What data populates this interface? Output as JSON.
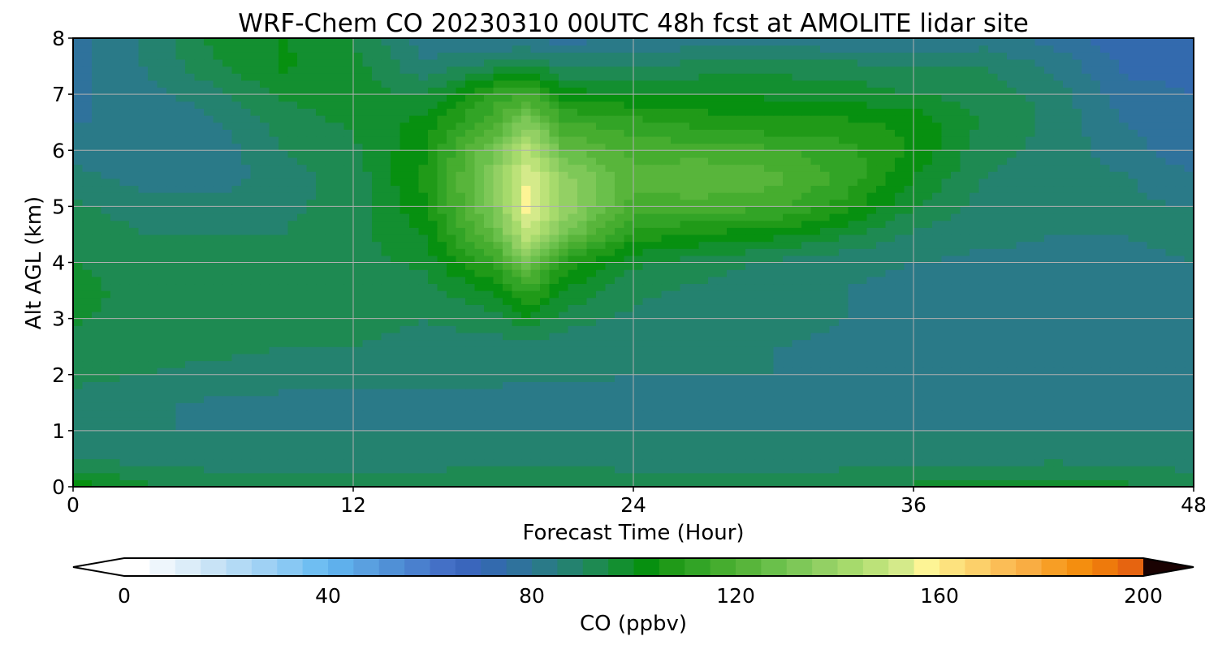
{
  "chart_data": {
    "type": "heatmap",
    "title": "WRF-Chem CO  20230310 00UTC 48h fcst at AMOLITE lidar site",
    "xlabel": "Forecast Time (Hour)",
    "ylabel": "Alt AGL (km)",
    "xlim": [
      0,
      48
    ],
    "ylim": [
      0,
      8
    ],
    "x_ticks": [
      "0",
      "12",
      "24",
      "36",
      "48"
    ],
    "y_ticks": [
      "0",
      "1",
      "2",
      "3",
      "4",
      "5",
      "6",
      "7",
      "8"
    ],
    "grid": true,
    "z_units": "ppbv",
    "x": [
      0,
      3,
      6,
      9,
      12,
      15,
      18,
      19.5,
      21,
      24,
      27,
      30,
      33,
      36,
      39,
      42,
      45,
      48
    ],
    "y": [
      0,
      0.5,
      1,
      1.5,
      2,
      2.5,
      3,
      3.5,
      4,
      4.5,
      5,
      5.5,
      6,
      6.5,
      7,
      7.5,
      8
    ],
    "z": [
      [
        103,
        96,
        93,
        92,
        92,
        93,
        94,
        94,
        94,
        93,
        93,
        94,
        95,
        96,
        97,
        98,
        96,
        94
      ],
      [
        90,
        88,
        88,
        87,
        87,
        88,
        88,
        88,
        88,
        88,
        87,
        87,
        87,
        88,
        88,
        89,
        88,
        87
      ],
      [
        87,
        85,
        85,
        85,
        85,
        85,
        85,
        85,
        85,
        85,
        85,
        85,
        85,
        85,
        85,
        85,
        85,
        85
      ],
      [
        89,
        86,
        84,
        83,
        83,
        82,
        82,
        82,
        82,
        83,
        84,
        84,
        84,
        83,
        83,
        83,
        83,
        83
      ],
      [
        91,
        90,
        89,
        88,
        88,
        87,
        87,
        86,
        86,
        85,
        85,
        85,
        84,
        83,
        83,
        83,
        83,
        83
      ],
      [
        93,
        91,
        91,
        90,
        90,
        89,
        88,
        88,
        87,
        86,
        86,
        85,
        84,
        83,
        83,
        83,
        83,
        83
      ],
      [
        96,
        92,
        92,
        91,
        91,
        90,
        92,
        99,
        92,
        89,
        88,
        87,
        85,
        84,
        83,
        83,
        83,
        84
      ],
      [
        97,
        93,
        92,
        91,
        92,
        93,
        101,
        112,
        100,
        91,
        89,
        87,
        85,
        84,
        83,
        83,
        83,
        84
      ],
      [
        95,
        92,
        91,
        91,
        93,
        96,
        112,
        130,
        108,
        96,
        92,
        89,
        86,
        85,
        84,
        84,
        84,
        85
      ],
      [
        93,
        90,
        90,
        90,
        93,
        100,
        125,
        150,
        130,
        108,
        104,
        102,
        96,
        89,
        86,
        85,
        85,
        86
      ],
      [
        91,
        88,
        87,
        89,
        92,
        104,
        132,
        158,
        140,
        118,
        118,
        116,
        108,
        95,
        88,
        86,
        86,
        85
      ],
      [
        87,
        83,
        82,
        88,
        92,
        106,
        134,
        156,
        138,
        122,
        124,
        122,
        114,
        100,
        90,
        87,
        86,
        80
      ],
      [
        83,
        80,
        81,
        90,
        94,
        104,
        130,
        148,
        126,
        118,
        118,
        116,
        112,
        104,
        92,
        88,
        82,
        77
      ],
      [
        80,
        80,
        84,
        92,
        96,
        102,
        118,
        134,
        116,
        112,
        108,
        106,
        106,
        104,
        94,
        89,
        80,
        76
      ],
      [
        79,
        83,
        88,
        96,
        98,
        94,
        112,
        116,
        102,
        100,
        100,
        99,
        98,
        95,
        93,
        88,
        77,
        75
      ],
      [
        78,
        85,
        94,
        101,
        97,
        86,
        92,
        96,
        90,
        90,
        92,
        93,
        92,
        90,
        90,
        84,
        74,
        73
      ],
      [
        77,
        86,
        96,
        100,
        95,
        82,
        80,
        79,
        78,
        80,
        82,
        82,
        80,
        79,
        82,
        78,
        72,
        72
      ]
    ],
    "colorbar": {
      "label": "CO  (ppbv)",
      "min": 0,
      "max": 200,
      "step": 5,
      "extend": "both",
      "ticks": [
        "0",
        "40",
        "80",
        "120",
        "160",
        "200"
      ],
      "colors": [
        "#ffffff",
        "#eef6fc",
        "#dcedf9",
        "#c8e3f6",
        "#b3daf5",
        "#9fd1f4",
        "#88c8f3",
        "#6fbef2",
        "#5fb0ec",
        "#5aa0e0",
        "#5090d6",
        "#4a80ce",
        "#4470c6",
        "#3a66bc",
        "#336aae",
        "#2f729c",
        "#2a7a88",
        "#24826f",
        "#1e8a52",
        "#138f30",
        "#079010",
        "#209a18",
        "#32a426",
        "#46ad2f",
        "#58b53b",
        "#6ac04b",
        "#7ec858",
        "#93d064",
        "#a6da6c",
        "#bce279",
        "#d4ea8a",
        "#fdf495",
        "#fde27e",
        "#fcd06a",
        "#fbbd56",
        "#f9ad43",
        "#f79e25",
        "#f48e0f",
        "#ee7a0c",
        "#e66410",
        "#dd4e0f",
        "#d63410",
        "#ca1d0c",
        "#c00d0b",
        "#ae0a0a",
        "#9c0908",
        "#860807",
        "#6e0605",
        "#560504",
        "#3a0303",
        "#1a0202"
      ]
    }
  }
}
